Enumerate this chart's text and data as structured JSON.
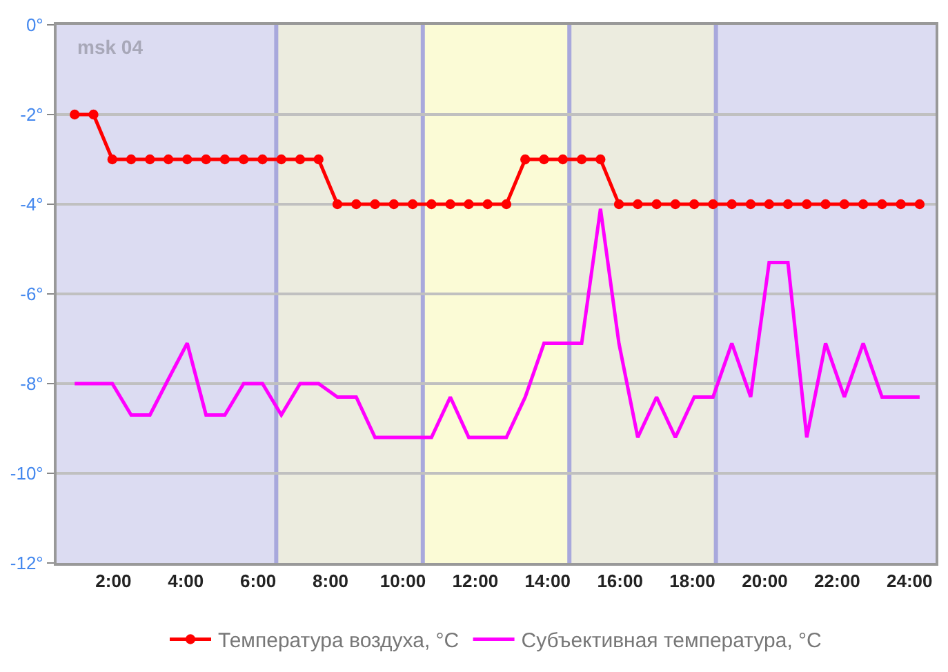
{
  "chart_data": {
    "type": "line",
    "x": [
      0.93,
      1.45,
      1.97,
      2.49,
      3.01,
      3.52,
      4.04,
      4.56,
      5.08,
      5.6,
      6.12,
      6.64,
      7.16,
      7.67,
      8.19,
      8.71,
      9.23,
      9.75,
      10.27,
      10.79,
      11.31,
      11.82,
      12.34,
      12.86,
      13.38,
      13.9,
      14.42,
      14.94,
      15.46,
      15.97,
      16.49,
      17.01,
      17.53,
      18.05,
      18.57,
      19.09,
      19.61,
      20.12,
      20.64,
      21.16,
      21.68,
      22.2,
      22.72,
      23.24,
      23.76,
      24.28
    ],
    "series": [
      {
        "name": "Температура воздуха, °C",
        "color": "#ff0000",
        "marker": "circle",
        "values": [
          -2,
          -2,
          -3,
          -3,
          -3,
          -3,
          -3,
          -3,
          -3,
          -3,
          -3,
          -3,
          -3,
          -3,
          -4,
          -4,
          -4,
          -4,
          -4,
          -4,
          -4,
          -4,
          -4,
          -4,
          -3,
          -3,
          -3,
          -3,
          -3,
          -4,
          -4,
          -4,
          -4,
          -4,
          -4,
          -4,
          -4,
          -4,
          -4,
          -4,
          -4,
          -4,
          -4,
          -4,
          -4,
          -4
        ]
      },
      {
        "name": "Субъективная температура, °C",
        "color": "#ff00ff",
        "marker": "none",
        "values": [
          -8,
          -8,
          -8,
          -8.7,
          -8.7,
          -7.9,
          -7.1,
          -8.7,
          -8.7,
          -8,
          -8,
          -8.7,
          -8,
          -8,
          -8.3,
          -8.3,
          -9.2,
          -9.2,
          -9.2,
          -9.2,
          -8.3,
          -9.2,
          -9.2,
          -9.2,
          -8.3,
          -7.1,
          -7.1,
          -7.1,
          -4.1,
          -7.1,
          -9.2,
          -8.3,
          -9.2,
          -8.3,
          -8.3,
          -7.1,
          -8.3,
          -5.3,
          -5.3,
          -9.2,
          -7.1,
          -8.3,
          -7.1,
          -8.3,
          -8.3,
          -8.3
        ]
      }
    ],
    "xlim": [
      0.43,
      24.72
    ],
    "xticks": [
      {
        "value": 2,
        "label": "2:00"
      },
      {
        "value": 4,
        "label": "4:00"
      },
      {
        "value": 6,
        "label": "6:00"
      },
      {
        "value": 8,
        "label": "8:00"
      },
      {
        "value": 10,
        "label": "10:00"
      },
      {
        "value": 12,
        "label": "12:00"
      },
      {
        "value": 14,
        "label": "14:00"
      },
      {
        "value": 16,
        "label": "16:00"
      },
      {
        "value": 18,
        "label": "18:00"
      },
      {
        "value": 20,
        "label": "20:00"
      },
      {
        "value": 22,
        "label": "22:00"
      },
      {
        "value": 24,
        "label": "24:00"
      }
    ],
    "ylim": [
      -12,
      0
    ],
    "yticks": [
      {
        "value": -12,
        "label": "-12°"
      },
      {
        "value": -10,
        "label": "-10°"
      },
      {
        "value": -8,
        "label": "-8°"
      },
      {
        "value": -6,
        "label": "-6°"
      },
      {
        "value": -4,
        "label": "-4°"
      },
      {
        "value": -2,
        "label": "-2°"
      },
      {
        "value": 0,
        "label": "0°"
      }
    ],
    "grid": "y",
    "legend": "bottom",
    "line_style": "solid",
    "annotations": [
      "msk 04"
    ],
    "ref_lines": [
      {
        "axis": "x",
        "value": 6.5,
        "color": "#a8a8dc"
      },
      {
        "axis": "x",
        "value": 10.55,
        "color": "#a8a8dc"
      },
      {
        "axis": "x",
        "value": 14.6,
        "color": "#a8a8dc"
      },
      {
        "axis": "x",
        "value": 18.65,
        "color": "#a8a8dc"
      }
    ],
    "bands": [
      {
        "axis": "x",
        "from": 0.43,
        "to": 6.5,
        "color": "#dcdcf2"
      },
      {
        "axis": "x",
        "from": 6.5,
        "to": 10.55,
        "color": "#ececdf"
      },
      {
        "axis": "x",
        "from": 10.55,
        "to": 14.6,
        "color": "#fbfbd6"
      },
      {
        "axis": "x",
        "from": 14.6,
        "to": 18.65,
        "color": "#ececdf"
      },
      {
        "axis": "x",
        "from": 18.65,
        "to": 24.72,
        "color": "#dcdcf2"
      }
    ]
  }
}
